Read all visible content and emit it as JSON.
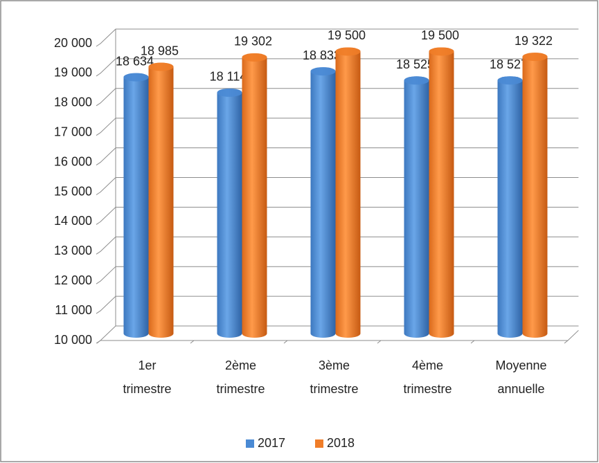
{
  "chart_data": {
    "type": "bar",
    "categories": [
      "1er trimestre",
      "2ème trimestre",
      "3ème trimestre",
      "4ème trimestre",
      "Moyenne annuelle"
    ],
    "series": [
      {
        "name": "2017",
        "color": "#4a8ad4",
        "values": [
          18634,
          18114,
          18833,
          18525,
          18527
        ],
        "value_labels": [
          "18 634",
          "18 114",
          "18 833",
          "18 525",
          "18 527"
        ]
      },
      {
        "name": "2018",
        "color": "#f07d28",
        "values": [
          18985,
          19302,
          19500,
          19500,
          19322
        ],
        "value_labels": [
          "18 985",
          "19 302",
          "19 500",
          "19 500",
          "19 322"
        ]
      }
    ],
    "ylim": [
      10000,
      20000
    ],
    "yticks": [
      {
        "value": 10000,
        "label": "10 000"
      },
      {
        "value": 11000,
        "label": "11 000"
      },
      {
        "value": 12000,
        "label": "12 000"
      },
      {
        "value": 13000,
        "label": "13 000"
      },
      {
        "value": 14000,
        "label": "14 000"
      },
      {
        "value": 15000,
        "label": "15 000"
      },
      {
        "value": 16000,
        "label": "16 000"
      },
      {
        "value": 17000,
        "label": "17 000"
      },
      {
        "value": 18000,
        "label": "18 000"
      },
      {
        "value": 19000,
        "label": "19 000"
      },
      {
        "value": 20000,
        "label": "20 000"
      }
    ],
    "grid": true,
    "legend": "bottom"
  }
}
